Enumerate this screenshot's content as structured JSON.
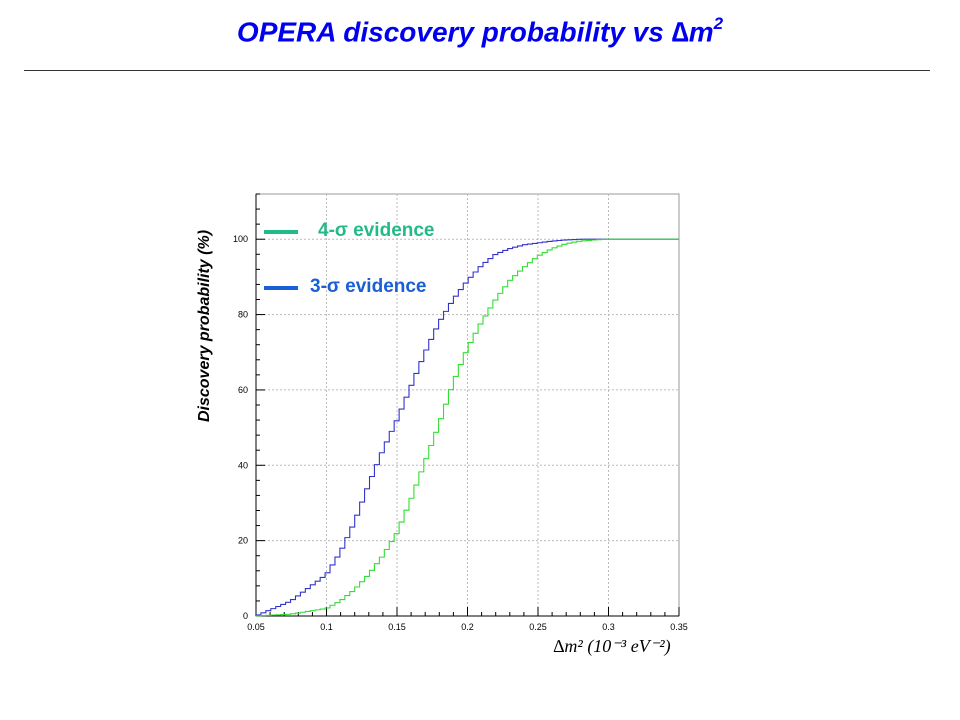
{
  "slide": {
    "title_text": "OPERA discovery probability vs ∆m",
    "title_sup": "2"
  },
  "chart_data": {
    "type": "line",
    "title": "",
    "xlabel": "∆m² (10⁻³ eV⁻²)",
    "ylabel": "Discovery probability (%)",
    "xlim": [
      0.05,
      0.35
    ],
    "ylim": [
      0,
      112
    ],
    "xticks": [
      "0.05",
      "0.1",
      "0.15",
      "0.2",
      "0.25",
      "0.3",
      "0.35"
    ],
    "yticks": [
      "0",
      "20",
      "40",
      "60",
      "80",
      "100"
    ],
    "grid": true,
    "legend_placement": "top-left",
    "x": [
      0.05,
      0.075,
      0.1,
      0.11,
      0.12,
      0.13,
      0.14,
      0.15,
      0.16,
      0.17,
      0.18,
      0.19,
      0.2,
      0.21,
      0.22,
      0.23,
      0.24,
      0.25,
      0.26,
      0.27,
      0.28,
      0.29,
      0.3,
      0.35
    ],
    "series": [
      {
        "name": "3-σ evidence",
        "color": "#3333cc",
        "values": [
          0,
          4,
          11,
          17,
          25,
          35,
          44,
          52,
          61,
          70,
          78,
          84,
          89,
          93,
          96,
          97.5,
          98.5,
          99,
          99.5,
          99.8,
          100,
          100,
          100,
          100
        ]
      },
      {
        "name": "4-σ evidence",
        "color": "#33dd33",
        "values": [
          0,
          0.5,
          2,
          4,
          7,
          11,
          16,
          22,
          31,
          41,
          51,
          62,
          71,
          78,
          84,
          89,
          92.5,
          95.5,
          97.5,
          98.8,
          99.5,
          99.8,
          100,
          100
        ]
      }
    ],
    "legend": [
      {
        "label": "4-σ evidence",
        "color": "#22bb88"
      },
      {
        "label": "3-σ evidence",
        "color": "#1a5fd6"
      }
    ]
  }
}
